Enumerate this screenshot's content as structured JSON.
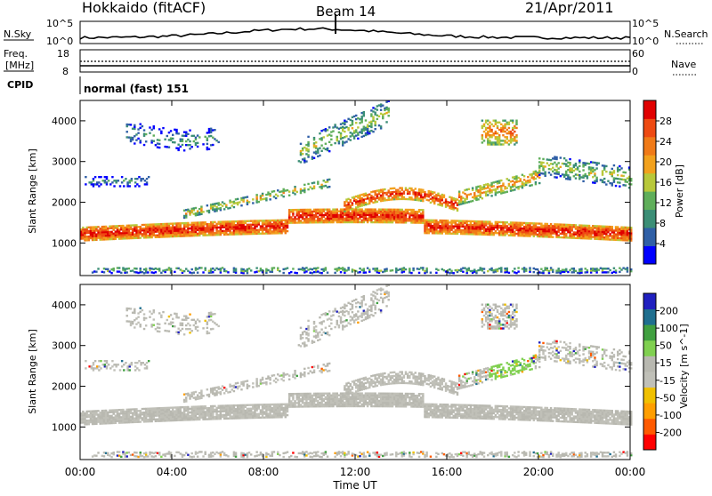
{
  "header": {
    "title": "Hokkaido (fitACF)",
    "beam": "Beam 14",
    "date": "21/Apr/2011"
  },
  "panels": {
    "nsky": {
      "label": "N.Sky",
      "right_label": "N.Search",
      "tick_top": "10^5",
      "tick_bottom": "10^0"
    },
    "freq": {
      "label_line1": "Freq.",
      "label_line2": "[MHz]",
      "right_label": "Nave",
      "tick_left_top": "18",
      "tick_left_bottom": "8",
      "tick_right_top": "60",
      "tick_right_bottom": "0"
    },
    "cpid": {
      "label": "CPID",
      "program": "normal (fast) 151"
    }
  },
  "colors": {
    "power": [
      "#0000ff",
      "#2f5fa6",
      "#3b8e76",
      "#5fae5a",
      "#b8c83a",
      "#f2a11d",
      "#f07a18",
      "#ee4a12",
      "#e00000"
    ],
    "velocity": [
      "#ff0000",
      "#ff5a00",
      "#ff9e00",
      "#f0c000",
      "#c0c0b8",
      "#b8b8b0",
      "#80d050",
      "#40a040",
      "#1f6f8f",
      "#2020c0"
    ]
  },
  "chart_data": [
    {
      "type": "heatmap",
      "panel": "power",
      "xlabel": "Time UT",
      "ylabel": "Slant Range [km]",
      "x_ticks": [
        "00:00",
        "04:00",
        "08:00",
        "12:00",
        "16:00",
        "20:00",
        "00:00"
      ],
      "y_ticks": [
        "1000",
        "2000",
        "3000",
        "4000"
      ],
      "ylim": [
        200,
        4500
      ],
      "colorbar": {
        "label": "Power [dB]",
        "ticks": [
          "4",
          "8",
          "12",
          "16",
          "20",
          "24",
          "28"
        ],
        "range": [
          0,
          30
        ]
      }
    },
    {
      "type": "heatmap",
      "panel": "velocity",
      "xlabel": "Time UT",
      "ylabel": "Slant Range [km]",
      "x_ticks": [
        "00:00",
        "04:00",
        "08:00",
        "12:00",
        "16:00",
        "20:00",
        "00:00"
      ],
      "y_ticks": [
        "1000",
        "2000",
        "3000",
        "4000"
      ],
      "ylim": [
        200,
        4500
      ],
      "colorbar": {
        "label": "Velocity [m s^-1]",
        "ticks": [
          "200",
          "100",
          "50",
          "15",
          "-15",
          "-50",
          "-100",
          "-200"
        ],
        "range": [
          -250,
          250
        ]
      }
    }
  ]
}
